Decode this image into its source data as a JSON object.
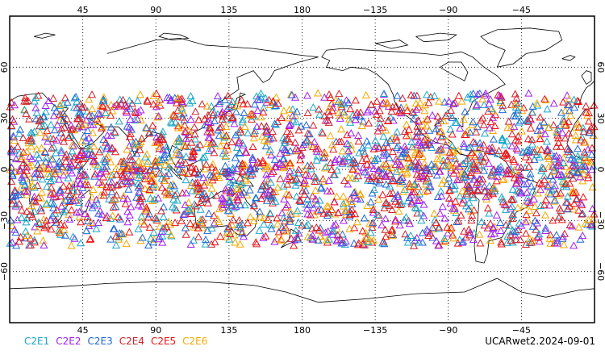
{
  "chart_data": {
    "type": "scatter",
    "projection": "equirectangular, centered 180",
    "lon_ticks_top": [
      "45",
      "90",
      "135",
      "180",
      "−135",
      "−90",
      "−45"
    ],
    "lon_ticks_bottom": [
      "45",
      "90",
      "135",
      "180",
      "−135",
      "−90",
      "−45"
    ],
    "lat_ticks_left": [
      "60",
      "30",
      "0",
      "−30",
      "−60"
    ],
    "lat_ticks_right": [
      "60",
      "30",
      "0",
      "−30",
      "−60"
    ],
    "xlim": [
      0,
      360
    ],
    "ylim": [
      -90,
      90
    ],
    "grid": true,
    "marker": "open-triangle",
    "point_lat_range": [
      -45,
      45
    ],
    "series": [
      {
        "name": "C2E1",
        "color": "#1aa7c7"
      },
      {
        "name": "C2E2",
        "color": "#a020f0"
      },
      {
        "name": "C2E3",
        "color": "#1e66d6"
      },
      {
        "name": "C2E4",
        "color": "#d0202a"
      },
      {
        "name": "C2E5",
        "color": "#ee1111"
      },
      {
        "name": "C2E6",
        "color": "#f5a900"
      }
    ]
  },
  "caption": "UCARwet2.2024-09-01",
  "colors": {
    "frame": "#000000",
    "coast": "#000000",
    "grid": "#000000"
  }
}
